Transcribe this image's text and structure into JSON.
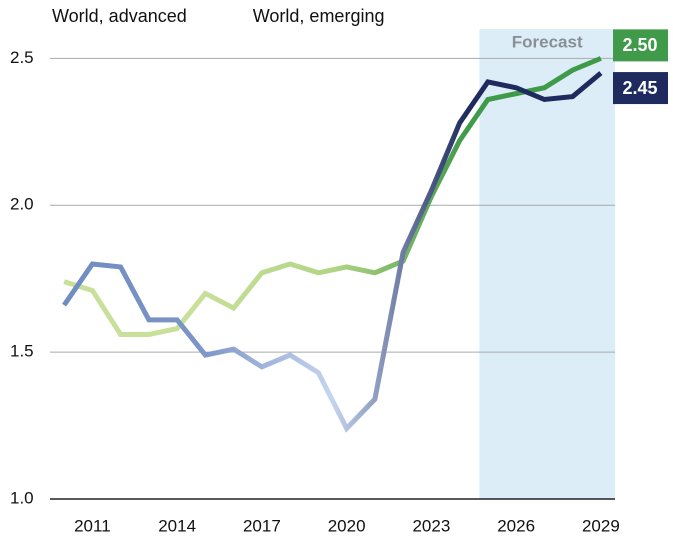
{
  "chart_data": {
    "type": "line",
    "x": [
      2010,
      2011,
      2012,
      2013,
      2014,
      2015,
      2016,
      2017,
      2018,
      2019,
      2020,
      2021,
      2022,
      2023,
      2024,
      2025,
      2026,
      2027,
      2028,
      2029
    ],
    "series": [
      {
        "name": "World, advanced",
        "color": "#3f9a4a",
        "gradient": [
          "#c8e09a",
          "#c8e09a",
          "#b2d585",
          "#3f9a4a",
          "#3f9a4a"
        ],
        "values": [
          1.74,
          1.71,
          1.56,
          1.56,
          1.58,
          1.7,
          1.65,
          1.77,
          1.8,
          1.77,
          1.79,
          1.77,
          1.81,
          2.03,
          2.22,
          2.36,
          2.38,
          2.4,
          2.46,
          2.5
        ],
        "value_labels": [
          null,
          null,
          null,
          null,
          null,
          null,
          null,
          null,
          null,
          null,
          null,
          null,
          null,
          null,
          null,
          null,
          null,
          null,
          null,
          "2.50"
        ]
      },
      {
        "name": "World, emerging",
        "color": "#1f2b5e",
        "gradient": [
          "#6f8cc0",
          "#7c95c6",
          "#c5d4ef",
          "#1f2b5e",
          "#1f2b5e"
        ],
        "values": [
          1.66,
          1.8,
          1.79,
          1.61,
          1.61,
          1.49,
          1.51,
          1.45,
          1.49,
          1.43,
          1.24,
          1.34,
          1.84,
          2.05,
          2.28,
          2.42,
          2.4,
          2.36,
          2.37,
          2.45
        ],
        "value_labels": [
          null,
          null,
          null,
          null,
          null,
          null,
          null,
          null,
          null,
          null,
          null,
          null,
          null,
          null,
          null,
          null,
          null,
          null,
          null,
          "2.45"
        ]
      }
    ],
    "xlim": [
      2009.5,
      2029.5
    ],
    "xticks": [
      2011,
      2014,
      2017,
      2020,
      2023,
      2026,
      2029
    ],
    "ylim": [
      1.0,
      2.6
    ],
    "yticks": [
      {
        "value": 1.0,
        "label": "1.0"
      },
      1.5,
      {
        "value": 2.0,
        "label": "2.0"
      },
      2.5
    ],
    "grid": true,
    "legend": "top-left",
    "forecast": {
      "label": "Forecast",
      "start": 2024.7,
      "color": "#dcedf8"
    }
  }
}
